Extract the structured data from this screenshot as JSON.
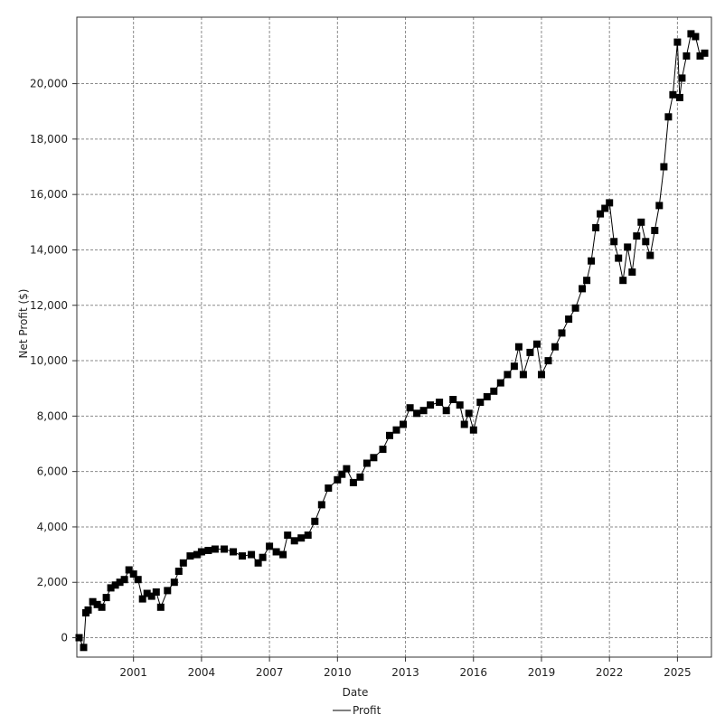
{
  "chart_data": {
    "type": "line",
    "title": "",
    "xlabel": "Date",
    "ylabel": "Net Profit ($)",
    "xlim": [
      1998.5,
      2026.5
    ],
    "ylim": [
      -700,
      22400
    ],
    "x_ticks": [
      "2001",
      "2004",
      "2007",
      "2010",
      "2013",
      "2016",
      "2019",
      "2022",
      "2025"
    ],
    "x_tick_values": [
      2001,
      2004,
      2007,
      2010,
      2013,
      2016,
      2019,
      2022,
      2025
    ],
    "y_ticks": [
      "0",
      "2,000",
      "4,000",
      "6,000",
      "8,000",
      "10,000",
      "12,000",
      "14,000",
      "16,000",
      "18,000",
      "20,000"
    ],
    "y_tick_values": [
      0,
      2000,
      4000,
      6000,
      8000,
      10000,
      12000,
      14000,
      16000,
      18000,
      20000
    ],
    "grid": true,
    "legend_position": "bottom-center",
    "series": [
      {
        "name": "Profit",
        "color": "#000000",
        "marker": "square",
        "x": [
          1998.6,
          1998.8,
          1998.9,
          1999.0,
          1999.2,
          1999.4,
          1999.6,
          1999.8,
          2000.0,
          2000.2,
          2000.4,
          2000.6,
          2000.8,
          2001.0,
          2001.2,
          2001.4,
          2001.6,
          2001.8,
          2002.0,
          2002.2,
          2002.5,
          2002.8,
          2003.0,
          2003.2,
          2003.5,
          2003.8,
          2004.0,
          2004.3,
          2004.6,
          2005.0,
          2005.4,
          2005.8,
          2006.2,
          2006.5,
          2006.7,
          2007.0,
          2007.3,
          2007.6,
          2007.8,
          2008.1,
          2008.4,
          2008.7,
          2009.0,
          2009.3,
          2009.6,
          2010.0,
          2010.2,
          2010.4,
          2010.7,
          2011.0,
          2011.3,
          2011.6,
          2012.0,
          2012.3,
          2012.6,
          2012.9,
          2013.2,
          2013.5,
          2013.8,
          2014.1,
          2014.5,
          2014.8,
          2015.1,
          2015.4,
          2015.6,
          2015.8,
          2016.0,
          2016.3,
          2016.6,
          2016.9,
          2017.2,
          2017.5,
          2017.8,
          2018.0,
          2018.2,
          2018.5,
          2018.8,
          2019.0,
          2019.3,
          2019.6,
          2019.9,
          2020.2,
          2020.5,
          2020.8,
          2021.0,
          2021.2,
          2021.4,
          2021.6,
          2021.8,
          2022.0,
          2022.2,
          2022.4,
          2022.6,
          2022.8,
          2023.0,
          2023.2,
          2023.4,
          2023.6,
          2023.8,
          2024.0,
          2024.2,
          2024.4,
          2024.6,
          2024.8,
          2025.0,
          2025.1,
          2025.2,
          2025.4,
          2025.6,
          2025.8,
          2026.0,
          2026.2
        ],
        "values": [
          0,
          -350,
          900,
          1000,
          1300,
          1200,
          1100,
          1450,
          1800,
          1900,
          2000,
          2100,
          2450,
          2300,
          2100,
          1400,
          1600,
          1500,
          1650,
          1100,
          1700,
          2000,
          2400,
          2700,
          2950,
          3000,
          3100,
          3150,
          3200,
          3200,
          3100,
          2950,
          3000,
          2700,
          2900,
          3300,
          3100,
          3000,
          3700,
          3500,
          3600,
          3700,
          4200,
          4800,
          5400,
          5700,
          5900,
          6100,
          5600,
          5800,
          6300,
          6500,
          6800,
          7300,
          7500,
          7700,
          8300,
          8100,
          8200,
          8400,
          8500,
          8200,
          8600,
          8400,
          7700,
          8100,
          7500,
          8500,
          8700,
          8900,
          9200,
          9500,
          9800,
          10500,
          9500,
          10300,
          10600,
          9500,
          10000,
          10500,
          11000,
          11500,
          11900,
          12600,
          12900,
          13600,
          14800,
          15300,
          15500,
          15700,
          14300,
          13700,
          12900,
          14100,
          13200,
          14500,
          15000,
          14300,
          13800,
          14700,
          15600,
          17000,
          18800,
          19600,
          21500,
          19500,
          20200,
          21000,
          21800,
          21700,
          21000,
          21100
        ]
      }
    ]
  }
}
